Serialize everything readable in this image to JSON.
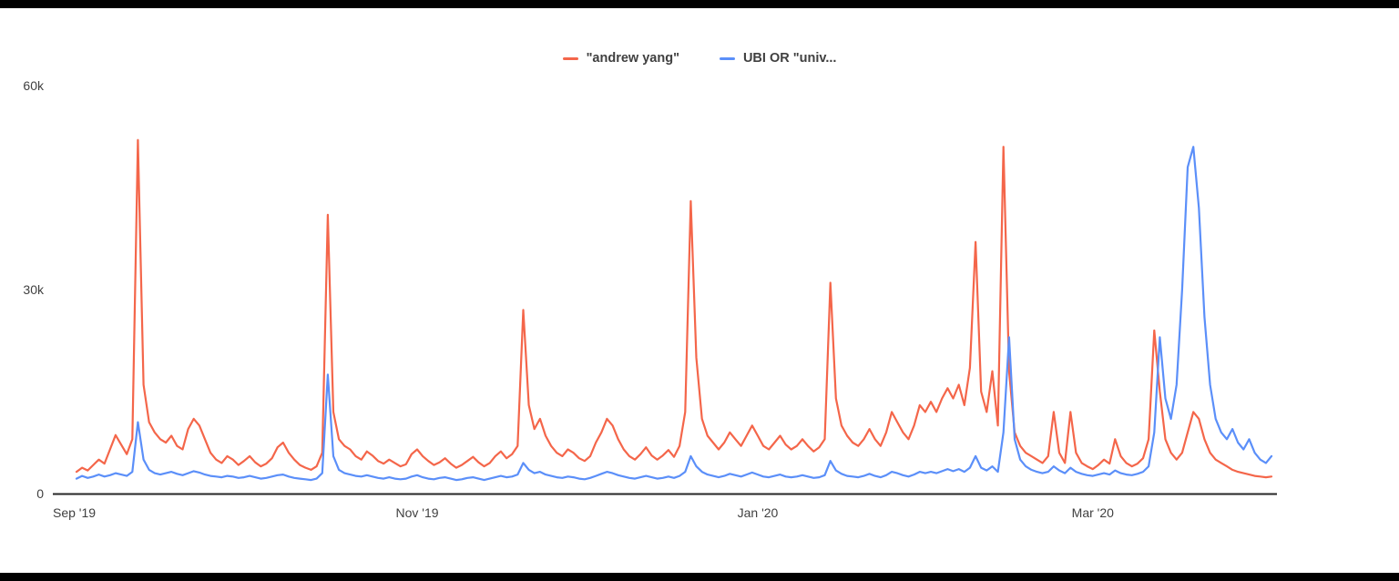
{
  "chart_data": {
    "type": "line",
    "x_start_date": "2019-09-01",
    "x_interval": "daily",
    "x_tick_labels": [
      "Sep '19",
      "Nov '19",
      "Jan '20",
      "Mar '20"
    ],
    "x_tick_day_indices": [
      0,
      61,
      122,
      182
    ],
    "y_ticks": [
      {
        "label": "0",
        "value": 0
      },
      {
        "label": "30k",
        "value": 30000
      },
      {
        "label": "60k",
        "value": 60000
      }
    ],
    "ylim": [
      0,
      60000
    ],
    "grid": false,
    "legend_position": "top-center",
    "series": [
      {
        "name": "\"andrew yang\"",
        "color": "#f4664a",
        "values": [
          3200,
          3800,
          3400,
          4200,
          5000,
          4400,
          6500,
          8600,
          7200,
          5800,
          8000,
          52000,
          16000,
          10500,
          9000,
          8000,
          7500,
          8500,
          7000,
          6500,
          9500,
          11000,
          10000,
          8000,
          6000,
          5000,
          4500,
          5500,
          5000,
          4200,
          4800,
          5500,
          4600,
          4000,
          4400,
          5200,
          6800,
          7500,
          6000,
          5000,
          4200,
          3800,
          3500,
          4000,
          6000,
          41000,
          12000,
          8000,
          7000,
          6500,
          5500,
          5000,
          6200,
          5600,
          4800,
          4400,
          5000,
          4500,
          4000,
          4300,
          5800,
          6500,
          5500,
          4800,
          4200,
          4600,
          5200,
          4400,
          3800,
          4200,
          4800,
          5400,
          4600,
          4000,
          4500,
          5500,
          6200,
          5200,
          5800,
          7000,
          27000,
          13000,
          9500,
          11000,
          8500,
          7000,
          6000,
          5500,
          6500,
          6000,
          5200,
          4800,
          5500,
          7500,
          9000,
          11000,
          10000,
          8000,
          6500,
          5500,
          5000,
          5800,
          6800,
          5600,
          5000,
          5600,
          6400,
          5400,
          7000,
          12000,
          43000,
          20000,
          11000,
          8500,
          7500,
          6500,
          7500,
          9000,
          8000,
          7000,
          8500,
          10000,
          8500,
          7000,
          6500,
          7500,
          8500,
          7200,
          6500,
          7000,
          8000,
          7000,
          6200,
          6800,
          8000,
          31000,
          14000,
          10000,
          8500,
          7500,
          7000,
          8000,
          9500,
          8000,
          7000,
          9000,
          12000,
          10500,
          9000,
          8000,
          10000,
          13000,
          12000,
          13500,
          12000,
          14000,
          15500,
          14000,
          16000,
          13000,
          18500,
          37000,
          15000,
          12000,
          18000,
          10000,
          51000,
          18000,
          9000,
          7000,
          6000,
          5500,
          5000,
          4500,
          5500,
          12000,
          6000,
          4500,
          12000,
          6000,
          4500,
          4000,
          3600,
          4200,
          5000,
          4400,
          8000,
          5500,
          4500,
          4000,
          4400,
          5200,
          8000,
          24000,
          15000,
          8000,
          6000,
          5000,
          6000,
          9000,
          12000,
          11000,
          8000,
          6000,
          5000,
          4500,
          4000,
          3500,
          3200,
          3000,
          2800,
          2600,
          2500,
          2400,
          2500
        ]
      },
      {
        "name": "UBI OR \"univ...",
        "color": "#5b8ff9",
        "values": [
          2200,
          2600,
          2300,
          2500,
          2800,
          2500,
          2700,
          3000,
          2800,
          2600,
          3200,
          10500,
          5000,
          3500,
          3000,
          2800,
          3000,
          3200,
          2900,
          2700,
          3000,
          3300,
          3100,
          2800,
          2600,
          2500,
          2400,
          2600,
          2500,
          2300,
          2400,
          2600,
          2400,
          2200,
          2300,
          2500,
          2700,
          2800,
          2500,
          2300,
          2200,
          2100,
          2000,
          2200,
          3000,
          17500,
          5500,
          3500,
          3000,
          2800,
          2600,
          2500,
          2700,
          2500,
          2300,
          2200,
          2400,
          2200,
          2100,
          2200,
          2500,
          2700,
          2400,
          2200,
          2100,
          2300,
          2400,
          2200,
          2000,
          2100,
          2300,
          2400,
          2200,
          2000,
          2200,
          2400,
          2600,
          2400,
          2500,
          2800,
          4500,
          3500,
          3000,
          3200,
          2800,
          2600,
          2400,
          2300,
          2500,
          2400,
          2200,
          2100,
          2300,
          2600,
          2900,
          3200,
          3000,
          2700,
          2500,
          2300,
          2200,
          2400,
          2600,
          2400,
          2200,
          2300,
          2500,
          2300,
          2600,
          3200,
          5500,
          4000,
          3200,
          2800,
          2600,
          2400,
          2600,
          2900,
          2700,
          2500,
          2800,
          3100,
          2800,
          2500,
          2400,
          2600,
          2800,
          2500,
          2400,
          2500,
          2700,
          2500,
          2300,
          2400,
          2700,
          4800,
          3400,
          2900,
          2600,
          2500,
          2400,
          2600,
          2900,
          2600,
          2400,
          2700,
          3200,
          3000,
          2700,
          2500,
          2800,
          3200,
          3000,
          3200,
          3000,
          3300,
          3600,
          3300,
          3600,
          3200,
          3800,
          5500,
          3800,
          3400,
          4000,
          3200,
          9000,
          23000,
          8000,
          5000,
          4000,
          3500,
          3200,
          3000,
          3200,
          4000,
          3400,
          3000,
          3800,
          3200,
          2900,
          2700,
          2600,
          2800,
          3000,
          2800,
          3400,
          3000,
          2800,
          2700,
          2900,
          3200,
          4000,
          9000,
          23000,
          14000,
          11000,
          16000,
          30000,
          48000,
          51000,
          42000,
          26000,
          16000,
          11000,
          9000,
          8000,
          9500,
          7500,
          6500,
          8000,
          6000,
          5000,
          4500,
          5500
        ]
      }
    ]
  },
  "colors": {
    "background": "#ffffff",
    "frame_bars": "#000000",
    "axis_line": "#262626",
    "tick_text": "#404040",
    "legend_text": "#404040"
  }
}
